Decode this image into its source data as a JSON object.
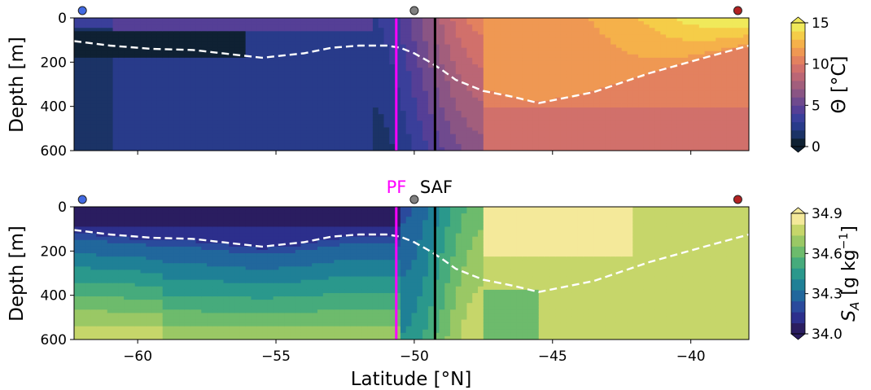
{
  "chart_data": [
    {
      "type": "heatmap",
      "panel": "top",
      "variable": "temperature",
      "xlim": [
        -62.3,
        -37.9
      ],
      "ylim": [
        600,
        0
      ],
      "ylabel": "Depth [m]",
      "ytick_labels": [
        "0",
        "200",
        "400",
        "600"
      ],
      "yticks": [
        0,
        200,
        400,
        600
      ],
      "colorbar": {
        "label": "Θ [°C]",
        "range": [
          0,
          15
        ],
        "ticks": [
          0,
          5,
          10,
          15
        ],
        "tick_labels": [
          "0",
          "5",
          "10",
          "15"
        ],
        "extend": "both",
        "colors": [
          "#0f2133",
          "#1b3366",
          "#283b8a",
          "#3a3f9a",
          "#553f96",
          "#6f4a8e",
          "#8a5584",
          "#a25e7c",
          "#bb6675",
          "#d1706b",
          "#e3815f",
          "#ef9853",
          "#f5b14a",
          "#f5cd48",
          "#f0e95a"
        ]
      },
      "mixed_layer_depth": {
        "lat": [
          -62.3,
          -61.0,
          -59.5,
          -58.0,
          -55.5,
          -54.0,
          -53.0,
          -52.0,
          -51.0,
          -50.5,
          -50.0,
          -49.5,
          -49.0,
          -48.5,
          -47.5,
          -46.5,
          -45.5,
          -43.5,
          -41.5,
          -39.5,
          -37.9
        ],
        "depth": [
          105,
          125,
          140,
          145,
          180,
          160,
          135,
          125,
          125,
          135,
          160,
          195,
          235,
          280,
          330,
          355,
          385,
          335,
          250,
          180,
          125
        ]
      },
      "fronts": [
        {
          "name": "PF",
          "lat": -50.65,
          "color": "#ff00ff"
        },
        {
          "name": "SAF",
          "lat": -49.25,
          "color": "#000000"
        }
      ],
      "stations": [
        {
          "lat": -62.0,
          "color": "#4169e1"
        },
        {
          "lat": -50.0,
          "color": "#808080"
        },
        {
          "lat": -38.3,
          "color": "#b22222"
        }
      ]
    },
    {
      "type": "heatmap",
      "panel": "bottom",
      "variable": "absolute_salinity",
      "xlim": [
        -62.3,
        -37.9
      ],
      "ylim": [
        600,
        0
      ],
      "xlabel": "Latitude [°N]",
      "ylabel": "Depth [m]",
      "xticks": [
        -60,
        -55,
        -50,
        -45,
        -40
      ],
      "xtick_labels": [
        "−60",
        "−55",
        "−50",
        "−45",
        "−40"
      ],
      "yticks": [
        0,
        200,
        400,
        600
      ],
      "ytick_labels": [
        "0",
        "200",
        "400",
        "600"
      ],
      "colorbar": {
        "label": "S_A [g kg⁻¹]",
        "label_main": "S",
        "label_sub": "A",
        "label_unit": "[g kg",
        "label_sup": "−1",
        "label_close": "]",
        "range": [
          34.0,
          34.9
        ],
        "ticks": [
          34.0,
          34.3,
          34.6,
          34.9
        ],
        "tick_labels": [
          "34.0",
          "34.3",
          "34.6",
          "34.9"
        ],
        "extend": "both",
        "colors": [
          "#2a1d60",
          "#2c2f8c",
          "#2a4a9c",
          "#21679c",
          "#1f8096",
          "#2a988c",
          "#46ab7c",
          "#6dbb6c",
          "#9ac865",
          "#c6d66a",
          "#f4e99a"
        ]
      },
      "mixed_layer_depth": {
        "lat": [
          -62.3,
          -61.0,
          -59.5,
          -58.0,
          -55.5,
          -54.0,
          -53.0,
          -52.0,
          -51.0,
          -50.5,
          -50.0,
          -49.5,
          -49.0,
          -48.5,
          -47.5,
          -46.5,
          -45.5,
          -43.5,
          -41.5,
          -39.5,
          -37.9
        ],
        "depth": [
          105,
          125,
          140,
          145,
          180,
          160,
          135,
          125,
          125,
          135,
          160,
          195,
          235,
          280,
          330,
          355,
          385,
          335,
          250,
          180,
          125
        ]
      },
      "fronts": [
        {
          "name": "PF",
          "lat": -50.65,
          "color": "#ff00ff"
        },
        {
          "name": "SAF",
          "lat": -49.25,
          "color": "#000000"
        }
      ],
      "stations": [
        {
          "lat": -62.0,
          "color": "#4169e1"
        },
        {
          "lat": -50.0,
          "color": "#808080"
        },
        {
          "lat": -38.3,
          "color": "#b22222"
        }
      ]
    }
  ]
}
